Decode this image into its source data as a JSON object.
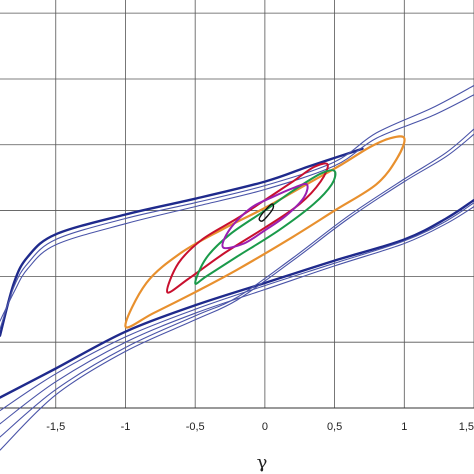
{
  "chart_data": {
    "type": "line",
    "title": "",
    "xlabel": "γ",
    "ylabel": "",
    "xlim": [
      -1.9,
      1.5
    ],
    "ylim": [
      -1.5,
      1.6
    ],
    "grid": true,
    "x_ticks": [
      -1.5,
      -1,
      -0.5,
      0,
      0.5,
      1,
      1.5
    ],
    "x_tick_labels": [
      "-1,5",
      "-1",
      "-0,5",
      "0",
      "0,5",
      "1",
      "1,5"
    ],
    "y_gridlines": [
      -1.5,
      -1,
      -0.5,
      0,
      0.5,
      1,
      1.5
    ],
    "series": [
      {
        "color": "#1f2a8c",
        "width": 2.4,
        "points": [
          [
            -1.9,
            -0.95
          ],
          [
            -1.8,
            -0.55
          ],
          [
            -1.7,
            -0.35
          ],
          [
            -1.5,
            -0.18
          ],
          [
            -1,
            -0.03
          ],
          [
            -0.5,
            0.09
          ],
          [
            0,
            0.22
          ],
          [
            0.3,
            0.33
          ],
          [
            0.5,
            0.4
          ],
          [
            0.7,
            0.47
          ]
        ]
      },
      {
        "color": "#1f2a8c",
        "width": 2.4,
        "points": [
          [
            -1.9,
            -1.42
          ],
          [
            -1.5,
            -1.2
          ],
          [
            -1,
            -0.92
          ],
          [
            -0.5,
            -0.72
          ],
          [
            0,
            -0.55
          ],
          [
            0.5,
            -0.38
          ],
          [
            1,
            -0.22
          ],
          [
            1.3,
            -0.06
          ],
          [
            1.5,
            0.08
          ]
        ]
      },
      {
        "color": "#4a54a8",
        "width": 1.1,
        "points": [
          [
            -1.9,
            -0.84
          ],
          [
            -1.8,
            -0.62
          ],
          [
            -1.7,
            -0.44
          ],
          [
            -1.5,
            -0.26
          ],
          [
            -1,
            -0.1
          ],
          [
            -0.5,
            0.03
          ],
          [
            0,
            0.16
          ],
          [
            0.5,
            0.34
          ],
          [
            0.8,
            0.55
          ],
          [
            1.2,
            0.72
          ],
          [
            1.5,
            0.88
          ]
        ]
      },
      {
        "color": "#4a54a8",
        "width": 1.1,
        "points": [
          [
            -1.9,
            -0.9
          ],
          [
            -1.8,
            -0.58
          ],
          [
            -1.7,
            -0.4
          ],
          [
            -1.5,
            -0.22
          ],
          [
            -1,
            -0.06
          ],
          [
            -0.5,
            0.06
          ],
          [
            0,
            0.19
          ],
          [
            0.5,
            0.37
          ],
          [
            0.8,
            0.59
          ],
          [
            1.2,
            0.78
          ],
          [
            1.5,
            0.95
          ]
        ]
      },
      {
        "color": "#4a54a8",
        "width": 1.1,
        "points": [
          [
            -1.9,
            -1.62
          ],
          [
            -1.5,
            -1.3
          ],
          [
            -1,
            -1.0
          ],
          [
            -0.5,
            -0.78
          ],
          [
            0,
            -0.6
          ],
          [
            0.5,
            -0.42
          ],
          [
            1,
            -0.25
          ],
          [
            1.3,
            -0.1
          ],
          [
            1.5,
            0.03
          ]
        ]
      },
      {
        "color": "#4a54a8",
        "width": 1.1,
        "points": [
          [
            -1.9,
            -1.52
          ],
          [
            -1.5,
            -1.24
          ],
          [
            -1,
            -0.96
          ],
          [
            -0.5,
            -0.75
          ],
          [
            0,
            -0.57
          ],
          [
            0.5,
            -0.4
          ],
          [
            1,
            -0.23
          ],
          [
            1.3,
            -0.08
          ],
          [
            1.5,
            0.06
          ]
        ]
      },
      {
        "color": "#4a54a8",
        "width": 1.1,
        "points": [
          [
            -1.9,
            -1.72
          ],
          [
            -1.5,
            -1.36
          ],
          [
            -1,
            -1.04
          ],
          [
            -0.5,
            -0.8
          ],
          [
            -0.2,
            -0.66
          ],
          [
            0.2,
            -0.36
          ],
          [
            0.6,
            -0.04
          ],
          [
            1.0,
            0.24
          ],
          [
            1.3,
            0.44
          ],
          [
            1.5,
            0.62
          ]
        ]
      },
      {
        "color": "#4a54a8",
        "width": 1.1,
        "points": [
          [
            -1.9,
            -1.82
          ],
          [
            -1.5,
            -1.4
          ],
          [
            -1,
            -1.07
          ],
          [
            -0.5,
            -0.83
          ],
          [
            -0.2,
            -0.68
          ],
          [
            0.2,
            -0.38
          ],
          [
            0.6,
            -0.06
          ],
          [
            1.0,
            0.22
          ],
          [
            1.3,
            0.41
          ],
          [
            1.5,
            0.58
          ]
        ]
      }
    ],
    "loops": [
      {
        "color": "#e8902e",
        "width": 2.2,
        "points": [
          [
            -1,
            -0.88
          ],
          [
            -0.85,
            -0.55
          ],
          [
            -0.6,
            -0.32
          ],
          [
            -0.3,
            -0.14
          ],
          [
            0,
            0.02
          ],
          [
            0.3,
            0.2
          ],
          [
            0.55,
            0.35
          ],
          [
            0.75,
            0.48
          ],
          [
            0.9,
            0.55
          ],
          [
            1,
            0.55
          ],
          [
            0.95,
            0.4
          ],
          [
            0.8,
            0.2
          ],
          [
            0.5,
            0
          ],
          [
            0.2,
            -0.2
          ],
          [
            -0.2,
            -0.45
          ],
          [
            -0.5,
            -0.62
          ],
          [
            -0.8,
            -0.78
          ],
          [
            -1,
            -0.88
          ]
        ]
      },
      {
        "color": "#c8102e",
        "width": 2.0,
        "points": [
          [
            -0.7,
            -0.62
          ],
          [
            -0.62,
            -0.4
          ],
          [
            -0.45,
            -0.22
          ],
          [
            -0.2,
            -0.06
          ],
          [
            0,
            0.08
          ],
          [
            0.2,
            0.22
          ],
          [
            0.35,
            0.33
          ],
          [
            0.45,
            0.35
          ],
          [
            0.4,
            0.22
          ],
          [
            0.25,
            0.05
          ],
          [
            0,
            -0.13
          ],
          [
            -0.3,
            -0.33
          ],
          [
            -0.55,
            -0.52
          ],
          [
            -0.7,
            -0.62
          ]
        ]
      },
      {
        "color": "#1a9a4a",
        "width": 2.0,
        "points": [
          [
            -0.5,
            -0.55
          ],
          [
            -0.42,
            -0.36
          ],
          [
            -0.25,
            -0.18
          ],
          [
            0,
            0
          ],
          [
            0.2,
            0.15
          ],
          [
            0.4,
            0.28
          ],
          [
            0.5,
            0.3
          ],
          [
            0.48,
            0.2
          ],
          [
            0.35,
            0.05
          ],
          [
            0.1,
            -0.15
          ],
          [
            -0.2,
            -0.35
          ],
          [
            -0.42,
            -0.5
          ],
          [
            -0.5,
            -0.55
          ]
        ]
      },
      {
        "color": "#9b1fb0",
        "width": 2.0,
        "points": [
          [
            -0.3,
            -0.28
          ],
          [
            -0.25,
            -0.14
          ],
          [
            -0.1,
            0.02
          ],
          [
            0.05,
            0.1
          ],
          [
            0.2,
            0.17
          ],
          [
            0.3,
            0.2
          ],
          [
            0.28,
            0.1
          ],
          [
            0.15,
            -0.04
          ],
          [
            0,
            -0.15
          ],
          [
            -0.15,
            -0.25
          ],
          [
            -0.3,
            -0.28
          ]
        ]
      },
      {
        "color": "#111111",
        "width": 1.4,
        "points": [
          [
            -0.04,
            -0.06
          ],
          [
            0.0,
            0.0
          ],
          [
            0.05,
            0.05
          ],
          [
            0.06,
            0.02
          ],
          [
            0.02,
            -0.04
          ],
          [
            -0.02,
            -0.08
          ],
          [
            -0.04,
            -0.06
          ]
        ]
      }
    ]
  }
}
